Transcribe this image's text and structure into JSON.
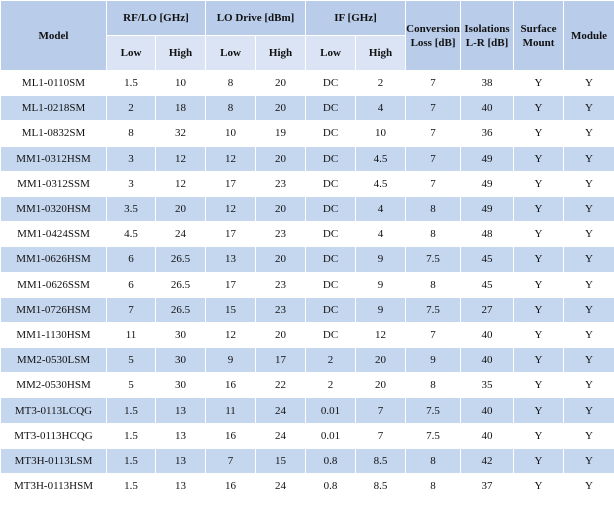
{
  "table": {
    "headers": {
      "model": "Model",
      "rf_lo": "RF/LO [GHz]",
      "lo_drive": "LO Drive [dBm]",
      "if": "IF [GHz]",
      "conversion_loss": "Conversion Loss [dB]",
      "isolations": "Isolations L-R [dB]",
      "surface_mount": "Surface Mount",
      "module": "Module",
      "low": "Low",
      "high": "High"
    },
    "rows": [
      {
        "model": "ML1-0110SM",
        "rf_low": "1.5",
        "rf_high": "10",
        "lo_low": "8",
        "lo_high": "20",
        "if_low": "DC",
        "if_high": "2",
        "conv_loss": "7",
        "isolation": "38",
        "smt": "Y",
        "module": "Y"
      },
      {
        "model": "ML1-0218SM",
        "rf_low": "2",
        "rf_high": "18",
        "lo_low": "8",
        "lo_high": "20",
        "if_low": "DC",
        "if_high": "4",
        "conv_loss": "7",
        "isolation": "40",
        "smt": "Y",
        "module": "Y"
      },
      {
        "model": "ML1-0832SM",
        "rf_low": "8",
        "rf_high": "32",
        "lo_low": "10",
        "lo_high": "19",
        "if_low": "DC",
        "if_high": "10",
        "conv_loss": "7",
        "isolation": "36",
        "smt": "Y",
        "module": "Y"
      },
      {
        "model": "MM1-0312HSM",
        "rf_low": "3",
        "rf_high": "12",
        "lo_low": "12",
        "lo_high": "20",
        "if_low": "DC",
        "if_high": "4.5",
        "conv_loss": "7",
        "isolation": "49",
        "smt": "Y",
        "module": "Y"
      },
      {
        "model": "MM1-0312SSM",
        "rf_low": "3",
        "rf_high": "12",
        "lo_low": "17",
        "lo_high": "23",
        "if_low": "DC",
        "if_high": "4.5",
        "conv_loss": "7",
        "isolation": "49",
        "smt": "Y",
        "module": "Y"
      },
      {
        "model": "MM1-0320HSM",
        "rf_low": "3.5",
        "rf_high": "20",
        "lo_low": "12",
        "lo_high": "20",
        "if_low": "DC",
        "if_high": "4",
        "conv_loss": "8",
        "isolation": "49",
        "smt": "Y",
        "module": "Y"
      },
      {
        "model": "MM1-0424SSM",
        "rf_low": "4.5",
        "rf_high": "24",
        "lo_low": "17",
        "lo_high": "23",
        "if_low": "DC",
        "if_high": "4",
        "conv_loss": "8",
        "isolation": "48",
        "smt": "Y",
        "module": "Y"
      },
      {
        "model": "MM1-0626HSM",
        "rf_low": "6",
        "rf_high": "26.5",
        "lo_low": "13",
        "lo_high": "20",
        "if_low": "DC",
        "if_high": "9",
        "conv_loss": "7.5",
        "isolation": "45",
        "smt": "Y",
        "module": "Y"
      },
      {
        "model": "MM1-0626SSM",
        "rf_low": "6",
        "rf_high": "26.5",
        "lo_low": "17",
        "lo_high": "23",
        "if_low": "DC",
        "if_high": "9",
        "conv_loss": "8",
        "isolation": "45",
        "smt": "Y",
        "module": "Y"
      },
      {
        "model": "MM1-0726HSM",
        "rf_low": "7",
        "rf_high": "26.5",
        "lo_low": "15",
        "lo_high": "23",
        "if_low": "DC",
        "if_high": "9",
        "conv_loss": "7.5",
        "isolation": "27",
        "smt": "Y",
        "module": "Y"
      },
      {
        "model": "MM1-1130HSM",
        "rf_low": "11",
        "rf_high": "30",
        "lo_low": "12",
        "lo_high": "20",
        "if_low": "DC",
        "if_high": "12",
        "conv_loss": "7",
        "isolation": "40",
        "smt": "Y",
        "module": "Y"
      },
      {
        "model": "MM2-0530LSM",
        "rf_low": "5",
        "rf_high": "30",
        "lo_low": "9",
        "lo_high": "17",
        "if_low": "2",
        "if_high": "20",
        "conv_loss": "9",
        "isolation": "40",
        "smt": "Y",
        "module": "Y"
      },
      {
        "model": "MM2-0530HSM",
        "rf_low": "5",
        "rf_high": "30",
        "lo_low": "16",
        "lo_high": "22",
        "if_low": "2",
        "if_high": "20",
        "conv_loss": "8",
        "isolation": "35",
        "smt": "Y",
        "module": "Y"
      },
      {
        "model": "MT3-0113LCQG",
        "rf_low": "1.5",
        "rf_high": "13",
        "lo_low": "11",
        "lo_high": "24",
        "if_low": "0.01",
        "if_high": "7",
        "conv_loss": "7.5",
        "isolation": "40",
        "smt": "Y",
        "module": "Y"
      },
      {
        "model": "MT3-0113HCQG",
        "rf_low": "1.5",
        "rf_high": "13",
        "lo_low": "16",
        "lo_high": "24",
        "if_low": "0.01",
        "if_high": "7",
        "conv_loss": "7.5",
        "isolation": "40",
        "smt": "Y",
        "module": "Y"
      },
      {
        "model": "MT3H-0113LSM",
        "rf_low": "1.5",
        "rf_high": "13",
        "lo_low": "7",
        "lo_high": "15",
        "if_low": "0.8",
        "if_high": "8.5",
        "conv_loss": "8",
        "isolation": "42",
        "smt": "Y",
        "module": "Y"
      },
      {
        "model": "MT3H-0113HSM",
        "rf_low": "1.5",
        "rf_high": "13",
        "lo_low": "16",
        "lo_high": "24",
        "if_low": "0.8",
        "if_high": "8.5",
        "conv_loss": "8",
        "isolation": "37",
        "smt": "Y",
        "module": "Y"
      }
    ]
  }
}
